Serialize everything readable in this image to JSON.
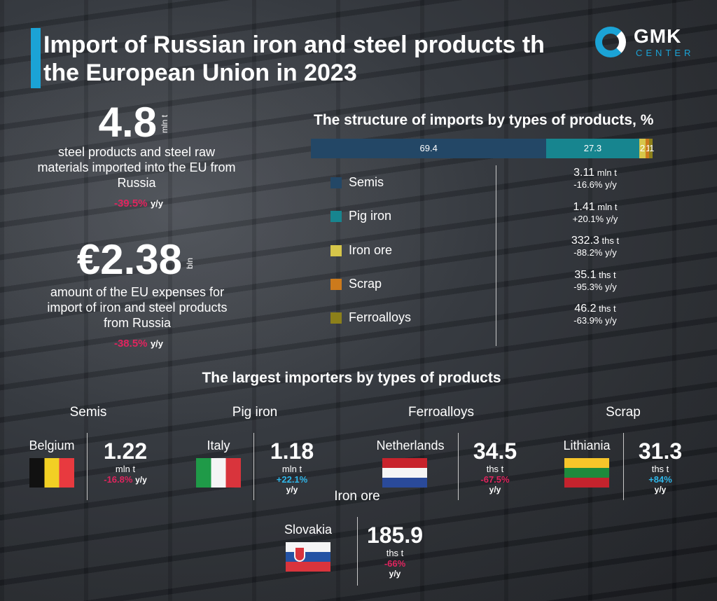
{
  "title": "Import of Russian iron and steel products th the European Union in 2023",
  "logo": {
    "name": "GMK",
    "sub": "CENTER"
  },
  "stat1": {
    "value": "4.8",
    "unit": "mln t",
    "description": "steel products and steel raw materials imported into the EU from Russia",
    "change": "-39.5%",
    "change_suffix": "y/y"
  },
  "stat2": {
    "value": "€2.38",
    "unit": "bln",
    "description": "amount of the EU expenses for import of iron and steel products from Russia",
    "change": "-38.5%",
    "change_suffix": "y/y"
  },
  "structure": {
    "title": "The structure of imports by types of products, %",
    "items": [
      {
        "label": "Semis",
        "volume": "3.11",
        "unit": "mln t",
        "change": "-16.6% y/y"
      },
      {
        "label": "Pig iron",
        "volume": "1.41",
        "unit": "mln t",
        "change": "+20.1% y/y"
      },
      {
        "label": "Iron ore",
        "volume": "332.3",
        "unit": "ths t",
        "change": "-88.2% y/y"
      },
      {
        "label": "Scrap",
        "volume": "35.1",
        "unit": "ths t",
        "change": "-95.3% y/y"
      },
      {
        "label": "Ferroalloys",
        "volume": "46.2",
        "unit": "ths t",
        "change": "-63.9% y/y"
      }
    ]
  },
  "chart_data": {
    "type": "bar",
    "title": "The structure of imports by types of products, %",
    "stacked": true,
    "orientation": "horizontal",
    "categories": [
      "Semis",
      "Pig iron",
      "Iron ore",
      "Scrap",
      "Ferroalloys"
    ],
    "values": [
      69.4,
      27.3,
      2,
      1,
      1
    ],
    "value_labels": [
      "69.4",
      "27.3",
      "2",
      "1",
      "1"
    ],
    "colors": [
      "#234766",
      "#17858f",
      "#d6c64a",
      "#cc7a1c",
      "#8c801a"
    ]
  },
  "importers": {
    "title": "The largest importers by types of products",
    "groups": [
      {
        "category": "Semis",
        "country": "Belgium",
        "value": "1.22",
        "unit": "mln t",
        "change": "-16.8%",
        "suffix": "y/y"
      },
      {
        "category": "Pig iron",
        "country": "Italy",
        "value": "1.18",
        "unit": "mln t",
        "change": "+22.1%",
        "suffix": "y/y"
      },
      {
        "category": "Ferroalloys",
        "country": "Netherlands",
        "value": "34.5",
        "unit": "ths t",
        "change": "-67.5%",
        "suffix": "y/y"
      },
      {
        "category": "Scrap",
        "country": "Lithiania",
        "value": "31.3",
        "unit": "ths t",
        "change": "+84%",
        "suffix": "y/y"
      },
      {
        "category": "Iron ore",
        "country": "Slovakia",
        "value": "185.9",
        "unit": "ths t",
        "change": "-66%",
        "suffix": "y/y"
      }
    ]
  }
}
